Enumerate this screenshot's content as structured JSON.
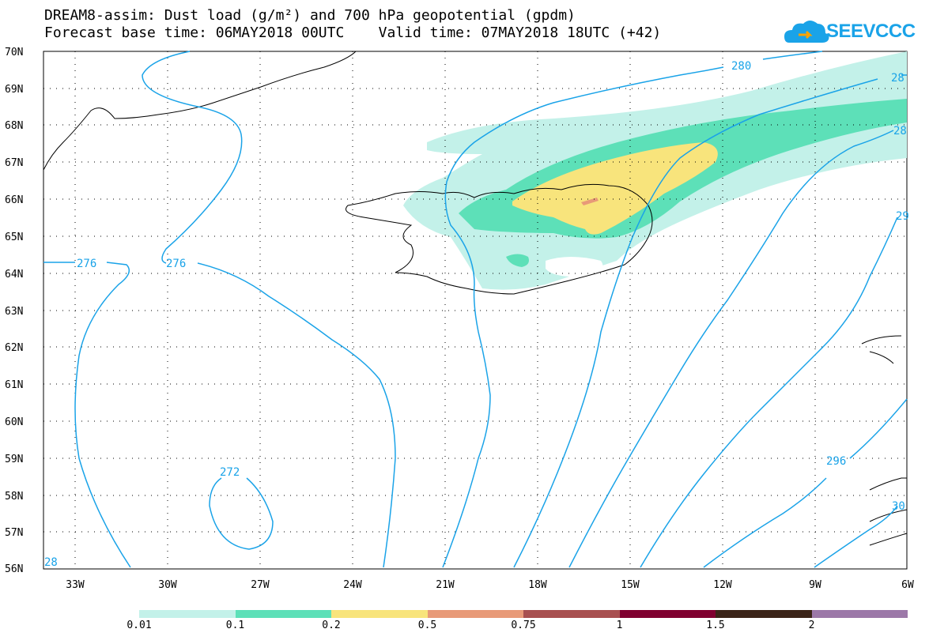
{
  "title": {
    "line1": "DREAM8-assim: Dust load (g/m²) and 700 hPa geopotential (gpdm)",
    "line2": "Forecast base time: 06MAY2018 00UTC    Valid time: 07MAY2018 18UTC (+42)"
  },
  "logo": {
    "text": "SEEVCCC",
    "icon": "cloud-icon"
  },
  "map": {
    "lat_labels": [
      "70N",
      "69N",
      "68N",
      "67N",
      "66N",
      "65N",
      "64N",
      "63N",
      "62N",
      "61N",
      "60N",
      "59N",
      "58N",
      "57N",
      "56N"
    ],
    "lon_labels": [
      "33W",
      "30W",
      "27W",
      "24W",
      "21W",
      "18W",
      "15W",
      "12W",
      "9W",
      "6W"
    ],
    "contour_labels": [
      "276",
      "276",
      "272",
      "280",
      "28",
      "28",
      "29",
      "296",
      "30",
      "28"
    ],
    "colors": {
      "contour": "#1aa3e8",
      "coast": "#000000"
    }
  },
  "legend": {
    "labels": [
      "0.01",
      "0.1",
      "0.2",
      "0.5",
      "0.75",
      "1",
      "1.5",
      "2"
    ],
    "colors": [
      "#c3f1e9",
      "#5de0b8",
      "#f8e47c",
      "#e89a78",
      "#a85050",
      "#800030",
      "#3b2418",
      "#9c78a8"
    ]
  }
}
